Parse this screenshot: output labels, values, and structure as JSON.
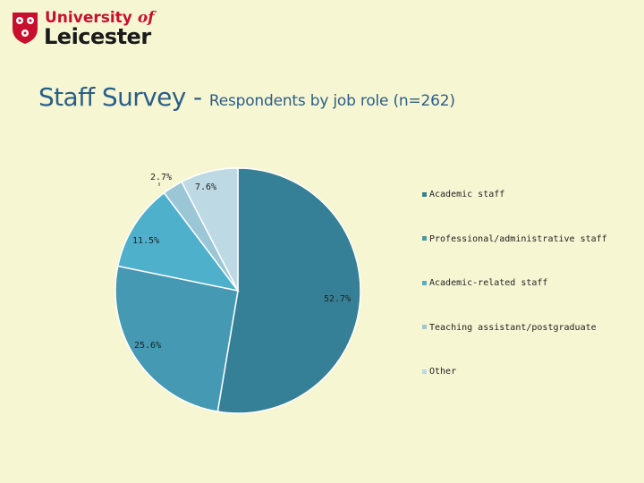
{
  "logo": {
    "line1": "University",
    "line1_of": "of",
    "line2": "Leicester"
  },
  "slide": {
    "title_main": "Staff Survey - ",
    "title_sub": "Respondents by job role (n=262)"
  },
  "colors": {
    "background": "#f7f6d2",
    "title": "#2b5e87",
    "logo_red": "#c8102e"
  },
  "chart_data": {
    "type": "pie",
    "title": "",
    "legend_position": "right",
    "slices": [
      {
        "name": "Academic staff",
        "value": 52.7,
        "label": "52.7%",
        "color": "#357f97"
      },
      {
        "name": "Professional/administrative staff",
        "value": 25.6,
        "label": "25.6%",
        "color": "#4599b2"
      },
      {
        "name": "Academic-related staff",
        "value": 11.5,
        "label": "11.5%",
        "color": "#4fb0cc"
      },
      {
        "name": "Teaching assistant/postgraduate",
        "value": 2.7,
        "label": "2.7%",
        "color": "#9ac6d5"
      },
      {
        "name": "Other",
        "value": 7.6,
        "label": "7.6%",
        "color": "#bdd9e3"
      }
    ]
  }
}
